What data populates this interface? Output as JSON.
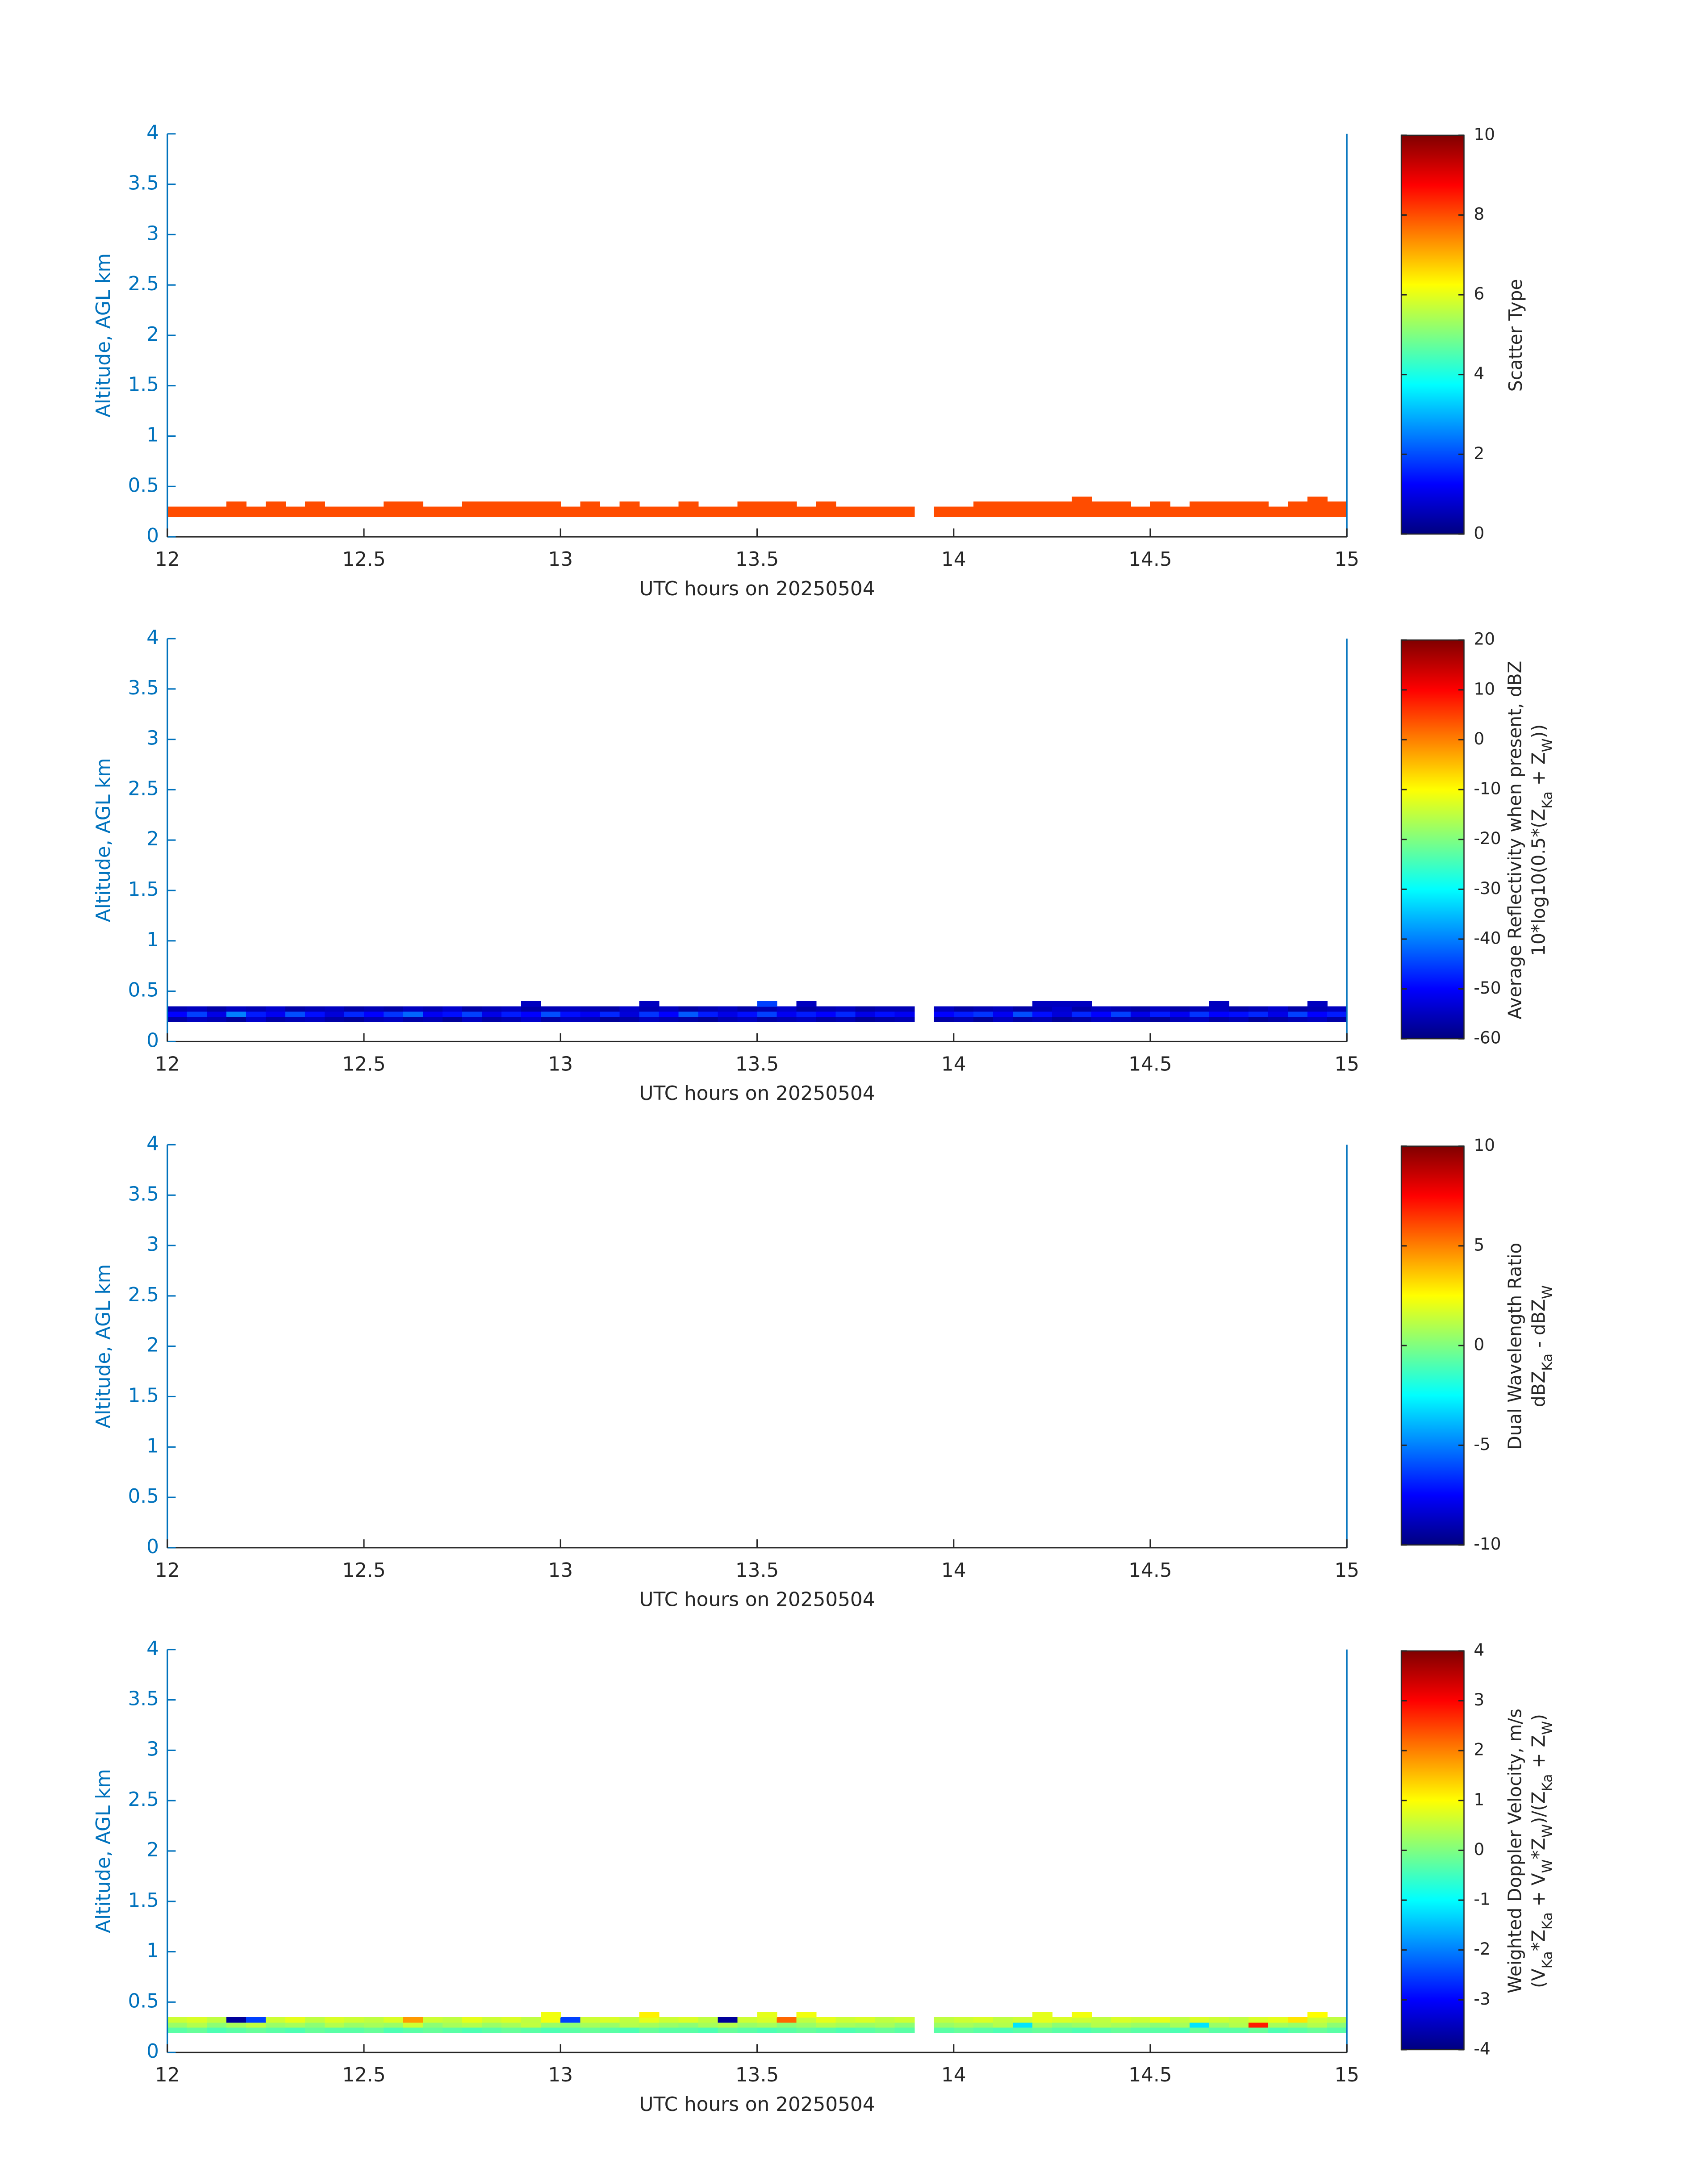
{
  "chart_data": [
    {
      "type": "heatmap",
      "colormap": "jet",
      "xlabel": "UTC hours on 20250504",
      "ylabel": "Altitude, AGL km",
      "xlim": [
        12,
        15
      ],
      "ylim": [
        0,
        4
      ],
      "xticks": [
        12,
        12.5,
        13,
        13.5,
        14,
        14.5,
        15
      ],
      "yticks": [
        0,
        0.5,
        1,
        1.5,
        2,
        2.5,
        3,
        3.5,
        4
      ],
      "xbins": [
        12,
        12.05,
        12.1,
        12.15,
        12.2,
        12.25,
        12.3,
        12.35,
        12.4,
        12.45,
        12.5,
        12.55,
        12.6,
        12.65,
        12.7,
        12.75,
        12.8,
        12.85,
        12.9,
        12.95,
        13,
        13.05,
        13.1,
        13.15,
        13.2,
        13.25,
        13.3,
        13.35,
        13.4,
        13.45,
        13.5,
        13.55,
        13.6,
        13.65,
        13.7,
        13.75,
        13.8,
        13.85,
        13.9,
        13.95,
        14,
        14.05,
        14.1,
        14.15,
        14.2,
        14.25,
        14.3,
        14.35,
        14.4,
        14.45,
        14.5,
        14.55,
        14.6,
        14.65,
        14.7,
        14.75,
        14.8,
        14.85,
        14.9,
        14.95,
        15
      ],
      "ybins": [
        0.2,
        0.25,
        0.3,
        0.35,
        0.4
      ],
      "z": [
        [
          8,
          8,
          8,
          8,
          8,
          8,
          8,
          8,
          8,
          8,
          8,
          8,
          8,
          8,
          8,
          8,
          8,
          8,
          8,
          8,
          8,
          8,
          8,
          8,
          8,
          8,
          8,
          8,
          8,
          8,
          8,
          8,
          8,
          8,
          8,
          8,
          8,
          8,
          null,
          8,
          8,
          8,
          8,
          8,
          8,
          8,
          8,
          8,
          8,
          8,
          8,
          8,
          8,
          8,
          8,
          8,
          8,
          8,
          8,
          8
        ],
        [
          8,
          8,
          8,
          8,
          8,
          8,
          8,
          8,
          8,
          8,
          8,
          8,
          8,
          8,
          8,
          8,
          8,
          8,
          8,
          8,
          8,
          8,
          8,
          8,
          8,
          8,
          8,
          8,
          8,
          8,
          8,
          8,
          8,
          8,
          8,
          8,
          8,
          8,
          null,
          8,
          8,
          8,
          8,
          8,
          8,
          8,
          8,
          8,
          8,
          8,
          8,
          8,
          8,
          8,
          8,
          8,
          8,
          8,
          8,
          8
        ],
        [
          null,
          null,
          null,
          8,
          null,
          8,
          null,
          8,
          null,
          null,
          null,
          8,
          8,
          null,
          null,
          8,
          8,
          8,
          8,
          8,
          null,
          8,
          null,
          8,
          null,
          null,
          8,
          null,
          null,
          8,
          8,
          8,
          null,
          8,
          null,
          null,
          null,
          null,
          null,
          null,
          null,
          8,
          8,
          8,
          8,
          8,
          8,
          8,
          8,
          null,
          8,
          null,
          8,
          8,
          8,
          8,
          null,
          8,
          8,
          8
        ],
        [
          null,
          null,
          null,
          null,
          null,
          null,
          null,
          null,
          null,
          null,
          null,
          null,
          null,
          null,
          null,
          null,
          null,
          null,
          null,
          null,
          null,
          null,
          null,
          null,
          null,
          null,
          null,
          null,
          null,
          null,
          null,
          null,
          null,
          null,
          null,
          null,
          null,
          null,
          null,
          null,
          null,
          null,
          null,
          null,
          null,
          null,
          8,
          null,
          null,
          null,
          null,
          null,
          null,
          null,
          null,
          null,
          null,
          null,
          8,
          null
        ]
      ],
      "colorbar": {
        "clim": [
          0,
          10
        ],
        "ticks": [
          0,
          2,
          4,
          6,
          8,
          10
        ],
        "label_lines": [
          [
            "Scatter Type"
          ]
        ]
      }
    },
    {
      "type": "heatmap",
      "colormap": "jet",
      "xlabel": "UTC hours on 20250504",
      "ylabel": "Altitude, AGL km",
      "xlim": [
        12,
        15
      ],
      "ylim": [
        0,
        4
      ],
      "xticks": [
        12,
        12.5,
        13,
        13.5,
        14,
        14.5,
        15
      ],
      "yticks": [
        0,
        0.5,
        1,
        1.5,
        2,
        2.5,
        3,
        3.5,
        4
      ],
      "xbins": [
        12,
        12.05,
        12.1,
        12.15,
        12.2,
        12.25,
        12.3,
        12.35,
        12.4,
        12.45,
        12.5,
        12.55,
        12.6,
        12.65,
        12.7,
        12.75,
        12.8,
        12.85,
        12.9,
        12.95,
        13,
        13.05,
        13.1,
        13.15,
        13.2,
        13.25,
        13.3,
        13.35,
        13.4,
        13.45,
        13.5,
        13.55,
        13.6,
        13.65,
        13.7,
        13.75,
        13.8,
        13.85,
        13.9,
        13.95,
        14,
        14.05,
        14.1,
        14.15,
        14.2,
        14.25,
        14.3,
        14.35,
        14.4,
        14.45,
        14.5,
        14.55,
        14.6,
        14.65,
        14.7,
        14.75,
        14.8,
        14.85,
        14.9,
        14.95,
        15
      ],
      "ybins": [
        0.2,
        0.25,
        0.3,
        0.35,
        0.4
      ],
      "z": [
        [
          -57,
          -55,
          -56,
          -58,
          -54,
          -57,
          -56,
          -55,
          -57,
          -58,
          -56,
          -55,
          -57,
          -56,
          -58,
          -55,
          -57,
          -56,
          -54,
          -57,
          -55,
          -56,
          -58,
          -57,
          -55,
          -56,
          -57,
          -58,
          -56,
          -55,
          -57,
          -56,
          -55,
          -57,
          -56,
          -58,
          -57,
          -56,
          null,
          -57,
          -56,
          -58,
          -55,
          -57,
          -56,
          -58,
          -57,
          -55,
          -56,
          -57,
          -58,
          -56,
          -55,
          -57,
          -56,
          -58,
          -57,
          -56,
          -55,
          -57
        ],
        [
          -50,
          -45,
          -52,
          -40,
          -48,
          -51,
          -44,
          -49,
          -53,
          -47,
          -50,
          -46,
          -42,
          -51,
          -49,
          -45,
          -52,
          -48,
          -50,
          -44,
          -49,
          -51,
          -47,
          -53,
          -46,
          -50,
          -43,
          -48,
          -52,
          -49,
          -45,
          -51,
          -48,
          -50,
          -47,
          -52,
          -49,
          -51,
          null,
          -50,
          -48,
          -46,
          -51,
          -44,
          -49,
          -53,
          -47,
          -50,
          -45,
          -52,
          -48,
          -51,
          -46,
          -50,
          -49,
          -47,
          -52,
          -45,
          -50,
          -48
        ],
        [
          -56,
          -55,
          -57,
          -55,
          -56,
          -54,
          -57,
          -56,
          -55,
          -57,
          -56,
          -57,
          -55,
          -56,
          -54,
          -57,
          -56,
          -55,
          -57,
          -56,
          -55,
          -56,
          -57,
          -54,
          -56,
          -55,
          -57,
          -56,
          -55,
          -57,
          -56,
          -54,
          -57,
          -56,
          -55,
          -57,
          -56,
          -56,
          null,
          -55,
          -57,
          -56,
          -55,
          -57,
          -56,
          -54,
          -57,
          -55,
          -56,
          -57,
          -55,
          -57,
          -56,
          -55,
          -57,
          -56,
          -54,
          -57,
          -56,
          -55
        ],
        [
          null,
          null,
          null,
          null,
          null,
          null,
          null,
          null,
          null,
          null,
          null,
          null,
          null,
          null,
          null,
          null,
          null,
          null,
          -55,
          null,
          null,
          null,
          null,
          null,
          -55,
          null,
          null,
          null,
          null,
          null,
          -45,
          null,
          -55,
          null,
          null,
          null,
          null,
          null,
          null,
          null,
          null,
          null,
          null,
          null,
          -55,
          -55,
          -55,
          null,
          null,
          null,
          null,
          null,
          null,
          -55,
          null,
          null,
          null,
          null,
          -55,
          null
        ]
      ],
      "colorbar": {
        "clim": [
          -60,
          20
        ],
        "ticks": [
          -60,
          -50,
          -40,
          -30,
          -20,
          -10,
          0,
          10,
          20
        ],
        "label_lines": [
          [
            "Average Reflectivity when present, dBZ"
          ],
          [
            "10*log10(0.5*(Z",
            {
              "sub": "Ka"
            },
            " + Z",
            {
              "sub": "W"
            },
            "))"
          ]
        ]
      }
    },
    {
      "type": "heatmap",
      "colormap": "jet",
      "xlabel": "UTC hours on 20250504",
      "ylabel": "Altitude, AGL km",
      "xlim": [
        12,
        15
      ],
      "ylim": [
        0,
        4
      ],
      "xticks": [
        12,
        12.5,
        13,
        13.5,
        14,
        14.5,
        15
      ],
      "yticks": [
        0,
        0.5,
        1,
        1.5,
        2,
        2.5,
        3,
        3.5,
        4
      ],
      "colorbar": {
        "clim": [
          -10,
          10
        ],
        "ticks": [
          -10,
          -5,
          0,
          5,
          10
        ],
        "label_lines": [
          [
            "Dual Wavelength Ratio"
          ],
          [
            "dBZ",
            {
              "sub": "Ka"
            },
            " - dBZ",
            {
              "sub": "W"
            }
          ]
        ]
      }
    },
    {
      "type": "heatmap",
      "colormap": "jet",
      "xlabel": "UTC hours on 20250504",
      "ylabel": "Altitude, AGL km",
      "xlim": [
        12,
        15
      ],
      "ylim": [
        0,
        4
      ],
      "xticks": [
        12,
        12.5,
        13,
        13.5,
        14,
        14.5,
        15
      ],
      "yticks": [
        0,
        0.5,
        1,
        1.5,
        2,
        2.5,
        3,
        3.5,
        4
      ],
      "xbins": [
        12,
        12.05,
        12.1,
        12.15,
        12.2,
        12.25,
        12.3,
        12.35,
        12.4,
        12.45,
        12.5,
        12.55,
        12.6,
        12.65,
        12.7,
        12.75,
        12.8,
        12.85,
        12.9,
        12.95,
        13,
        13.05,
        13.1,
        13.15,
        13.2,
        13.25,
        13.3,
        13.35,
        13.4,
        13.45,
        13.5,
        13.55,
        13.6,
        13.65,
        13.7,
        13.75,
        13.8,
        13.85,
        13.9,
        13.95,
        14,
        14.05,
        14.1,
        14.15,
        14.2,
        14.25,
        14.3,
        14.35,
        14.4,
        14.45,
        14.5,
        14.55,
        14.6,
        14.65,
        14.7,
        14.75,
        14.8,
        14.85,
        14.9,
        14.95,
        15
      ],
      "ybins": [
        0.2,
        0.25,
        0.3,
        0.35,
        0.4
      ],
      "z": [
        [
          -0.3,
          -0.2,
          -0.4,
          -0.3,
          -0.2,
          -0.3,
          -0.4,
          -0.2,
          -0.3,
          -0.3,
          -0.2,
          -0.4,
          -0.3,
          -0.2,
          -0.3,
          -0.4,
          -0.3,
          -0.2,
          -0.3,
          -0.4,
          -0.3,
          -0.2,
          -0.3,
          -0.4,
          -0.2,
          -0.3,
          -0.3,
          -0.4,
          -0.2,
          -0.3,
          -0.4,
          -0.3,
          -0.2,
          -0.3,
          -0.4,
          -0.3,
          -0.2,
          -0.3,
          null,
          -0.3,
          -0.2,
          -0.3,
          -0.4,
          -0.3,
          -0.2,
          -0.3,
          -0.4,
          -0.3,
          -0.2,
          -0.3,
          -0.3,
          -0.4,
          -0.2,
          -0.3,
          -0.3,
          -0.2,
          -0.4,
          -0.3,
          -0.2,
          -0.3
        ],
        [
          0.2,
          0.4,
          0.1,
          0.3,
          0.5,
          0.2,
          0.3,
          0.1,
          0.4,
          0.2,
          0.3,
          0.2,
          0.6,
          0.1,
          0.3,
          0.4,
          0.2,
          0.3,
          0.5,
          0.2,
          0.1,
          0.3,
          0.2,
          0.4,
          0.3,
          0.2,
          0.1,
          0.3,
          0.4,
          0.2,
          0.3,
          0.1,
          0.2,
          0.4,
          0.3,
          0.2,
          0.3,
          0.1,
          null,
          0.2,
          0.3,
          0.2,
          0.4,
          -1.2,
          0.3,
          0.1,
          0.2,
          0.4,
          0.3,
          0.2,
          0.1,
          0.3,
          -1.2,
          0.2,
          0.4,
          2.8,
          0.3,
          0.2,
          0.4,
          0.1
        ],
        [
          0.6,
          0.7,
          0.5,
          -3.8,
          -2.5,
          0.6,
          0.8,
          0.5,
          0.7,
          0.6,
          0.5,
          0.7,
          1.8,
          0.6,
          0.5,
          0.8,
          0.6,
          0.7,
          0.5,
          0.9,
          -2.5,
          0.6,
          0.7,
          0.5,
          0.8,
          0.6,
          0.7,
          0.5,
          -3.8,
          0.6,
          0.7,
          2.2,
          0.5,
          0.8,
          0.6,
          0.7,
          0.5,
          0.6,
          null,
          0.5,
          0.6,
          0.7,
          0.5,
          0.6,
          0.8,
          0.7,
          0.6,
          0.5,
          0.7,
          0.6,
          0.8,
          0.5,
          0.7,
          0.6,
          0.5,
          0.7,
          0.8,
          1.2,
          0.6,
          0.5
        ],
        [
          null,
          null,
          null,
          null,
          null,
          null,
          null,
          null,
          null,
          null,
          null,
          null,
          null,
          null,
          null,
          null,
          null,
          null,
          null,
          0.9,
          null,
          null,
          null,
          null,
          1.1,
          null,
          null,
          null,
          null,
          null,
          0.8,
          null,
          0.9,
          null,
          null,
          null,
          null,
          null,
          null,
          null,
          null,
          null,
          null,
          null,
          0.8,
          null,
          0.9,
          null,
          null,
          null,
          null,
          null,
          null,
          null,
          null,
          null,
          null,
          null,
          1.0,
          null
        ]
      ],
      "colorbar": {
        "clim": [
          -4,
          4
        ],
        "ticks": [
          -4,
          -3,
          -2,
          -1,
          0,
          1,
          2,
          3,
          4
        ],
        "label_lines": [
          [
            "Weighted Doppler Velocity, m/s"
          ],
          [
            "(V",
            {
              "sub": "Ka"
            },
            "*Z",
            {
              "sub": "Ka"
            },
            " + V",
            {
              "sub": "W"
            },
            "*Z",
            {
              "sub": "W"
            },
            ")/(Z",
            {
              "sub": "Ka"
            },
            " + Z",
            {
              "sub": "W"
            },
            ")"
          ]
        ]
      }
    }
  ]
}
